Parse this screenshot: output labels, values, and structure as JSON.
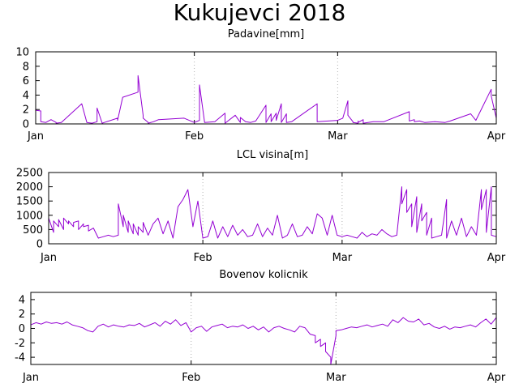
{
  "title": "Kukujevci 2018",
  "series_color": "#9400d3",
  "grid": true,
  "chart_data": [
    {
      "type": "line",
      "title": "Padavine[mm]",
      "xlabel": "",
      "ylabel": "",
      "x_unit": "date",
      "xlim": [
        "2018-01-01",
        "2018-04-01"
      ],
      "ylim": [
        0,
        10
      ],
      "yticks": [
        "0",
        "2",
        "4",
        "6",
        "8",
        "10"
      ],
      "xticks": [
        {
          "label": "Jan",
          "date": "2018-01-01"
        },
        {
          "label": "Feb",
          "date": "2018-02-01"
        },
        {
          "label": "Mar",
          "date": "2018-03-01"
        },
        {
          "label": "Apr",
          "date": "2018-04-01"
        }
      ],
      "series": [
        {
          "x": [
            "2018-01-01",
            "2018-01-02",
            "2018-01-02",
            "2018-01-03",
            "2018-01-04",
            "2018-01-05",
            "2018-01-05",
            "2018-01-06",
            "2018-01-10",
            "2018-01-11",
            "2018-01-12",
            "2018-01-13",
            "2018-01-13",
            "2018-01-14",
            "2018-01-17",
            "2018-01-17",
            "2018-01-18",
            "2018-01-21",
            "2018-01-21",
            "2018-01-22",
            "2018-01-22",
            "2018-01-23",
            "2018-01-23",
            "2018-01-24",
            "2018-01-25",
            "2018-01-30",
            "2018-02-01",
            "2018-02-02",
            "2018-02-02",
            "2018-02-02",
            "2018-02-03",
            "2018-02-05",
            "2018-02-06",
            "2018-02-07",
            "2018-02-07",
            "2018-02-09",
            "2018-02-10",
            "2018-02-10",
            "2018-02-11",
            "2018-02-12",
            "2018-02-13",
            "2018-02-15",
            "2018-02-15",
            "2018-02-16",
            "2018-02-16",
            "2018-02-17",
            "2018-02-17",
            "2018-02-18",
            "2018-02-18",
            "2018-02-19",
            "2018-02-19",
            "2018-02-20",
            "2018-02-25",
            "2018-02-25",
            "2018-03-01",
            "2018-03-02",
            "2018-03-03",
            "2018-03-03",
            "2018-03-04",
            "2018-03-04",
            "2018-03-05",
            "2018-03-05",
            "2018-03-05",
            "2018-03-06",
            "2018-03-06",
            "2018-03-08",
            "2018-03-10",
            "2018-03-15",
            "2018-03-15",
            "2018-03-16",
            "2018-03-16",
            "2018-03-17",
            "2018-03-18",
            "2018-03-20",
            "2018-03-22",
            "2018-03-23",
            "2018-03-27",
            "2018-03-28",
            "2018-03-31",
            "2018-03-31",
            "2018-04-01",
            "2018-04-01"
          ],
          "y": [
            1.9,
            1.8,
            0.3,
            0.2,
            0.6,
            0.2,
            0.1,
            0.2,
            2.8,
            0.2,
            0.1,
            0.3,
            2.2,
            0.1,
            0.8,
            0.5,
            3.7,
            4.4,
            6.7,
            1.2,
            0.8,
            0.2,
            0.1,
            0.3,
            0.6,
            0.8,
            0.2,
            0.5,
            0.9,
            5.4,
            0.2,
            0.3,
            0.9,
            1.5,
            0.1,
            1.2,
            0.2,
            0.9,
            0.3,
            0.2,
            0.4,
            2.6,
            0.2,
            1.4,
            0.3,
            1.5,
            0.5,
            2.8,
            0.2,
            1.4,
            0.2,
            0.3,
            2.8,
            0.3,
            0.5,
            0.8,
            3.2,
            1.2,
            0.3,
            0.2,
            0.1,
            0.4,
            0.2,
            0.6,
            0.1,
            0.3,
            0.3,
            1.7,
            0.4,
            0.6,
            0.3,
            0.4,
            0.2,
            0.3,
            0.2,
            0.4,
            1.4,
            0.5,
            4.8,
            3.9,
            0.8,
            0.6
          ]
        }
      ]
    },
    {
      "type": "line",
      "title": "LCL visina[m]",
      "xlabel": "",
      "ylabel": "",
      "x_unit": "date",
      "xlim": [
        "2018-01-01",
        "2018-04-01"
      ],
      "ylim": [
        0,
        2500
      ],
      "yticks": [
        "0",
        "500",
        "1000",
        "1500",
        "2000",
        "2500"
      ],
      "xticks": [
        {
          "label": "Jan",
          "date": "2018-01-01"
        },
        {
          "label": "Feb",
          "date": "2018-02-01"
        },
        {
          "label": "Mar",
          "date": "2018-03-01"
        },
        {
          "label": "Apr",
          "date": "2018-04-01"
        }
      ],
      "series": [
        {
          "x": [
            "2018-01-01",
            "2018-01-01",
            "2018-01-02",
            "2018-01-02",
            "2018-01-03",
            "2018-01-03",
            "2018-01-04",
            "2018-01-04",
            "2018-01-05",
            "2018-01-05",
            "2018-01-06",
            "2018-01-06",
            "2018-01-07",
            "2018-01-07",
            "2018-01-08",
            "2018-01-08",
            "2018-01-09",
            "2018-01-09",
            "2018-01-10",
            "2018-01-11",
            "2018-01-12",
            "2018-01-13",
            "2018-01-14",
            "2018-01-15",
            "2018-01-15",
            "2018-01-16",
            "2018-01-16",
            "2018-01-17",
            "2018-01-17",
            "2018-01-18",
            "2018-01-18",
            "2018-01-19",
            "2018-01-19",
            "2018-01-20",
            "2018-01-20",
            "2018-01-21",
            "2018-01-22",
            "2018-01-23",
            "2018-01-24",
            "2018-01-25",
            "2018-01-26",
            "2018-01-27",
            "2018-01-28",
            "2018-01-29",
            "2018-01-30",
            "2018-01-31",
            "2018-02-01",
            "2018-02-02",
            "2018-02-03",
            "2018-02-04",
            "2018-02-05",
            "2018-02-06",
            "2018-02-07",
            "2018-02-08",
            "2018-02-09",
            "2018-02-10",
            "2018-02-11",
            "2018-02-12",
            "2018-02-13",
            "2018-02-14",
            "2018-02-15",
            "2018-02-16",
            "2018-02-17",
            "2018-02-18",
            "2018-02-19",
            "2018-02-20",
            "2018-02-21",
            "2018-02-22",
            "2018-02-23",
            "2018-02-24",
            "2018-02-25",
            "2018-02-26",
            "2018-02-27",
            "2018-02-28",
            "2018-03-01",
            "2018-03-02",
            "2018-03-03",
            "2018-03-04",
            "2018-03-05",
            "2018-03-06",
            "2018-03-07",
            "2018-03-08",
            "2018-03-09",
            "2018-03-10",
            "2018-03-11",
            "2018-03-12",
            "2018-03-13",
            "2018-03-13",
            "2018-03-14",
            "2018-03-14",
            "2018-03-15",
            "2018-03-15",
            "2018-03-16",
            "2018-03-16",
            "2018-03-17",
            "2018-03-17",
            "2018-03-18",
            "2018-03-18",
            "2018-03-19",
            "2018-03-19",
            "2018-03-20",
            "2018-03-21",
            "2018-03-22",
            "2018-03-22",
            "2018-03-23",
            "2018-03-24",
            "2018-03-25",
            "2018-03-26",
            "2018-03-27",
            "2018-03-28",
            "2018-03-29",
            "2018-03-29",
            "2018-03-30",
            "2018-03-30",
            "2018-03-31",
            "2018-03-31",
            "2018-04-01"
          ],
          "y": [
            300,
            900,
            400,
            800,
            600,
            850,
            500,
            900,
            700,
            800,
            600,
            750,
            800,
            500,
            700,
            600,
            650,
            450,
            550,
            200,
            250,
            300,
            250,
            300,
            1400,
            600,
            1000,
            400,
            800,
            350,
            700,
            300,
            600,
            400,
            750,
            300,
            700,
            900,
            350,
            800,
            200,
            1300,
            1550,
            1900,
            600,
            1500,
            200,
            250,
            800,
            200,
            600,
            250,
            650,
            300,
            500,
            250,
            300,
            700,
            250,
            550,
            300,
            1000,
            200,
            300,
            700,
            250,
            300,
            600,
            350,
            1050,
            900,
            300,
            1000,
            300,
            250,
            300,
            250,
            200,
            400,
            250,
            350,
            300,
            500,
            350,
            250,
            300,
            2000,
            1400,
            1900,
            1100,
            1400,
            600,
            1650,
            400,
            1400,
            800,
            1100,
            300,
            900,
            200,
            250,
            300,
            1550,
            200,
            800,
            300,
            900,
            250,
            600,
            300,
            1900,
            1200,
            1900,
            400,
            2000,
            300,
            250
          ]
        }
      ]
    },
    {
      "type": "line",
      "title": "Bovenov kolicnik",
      "xlabel": "",
      "ylabel": "",
      "x_unit": "date",
      "xlim": [
        "2018-01-01",
        "2018-04-01"
      ],
      "ylim": [
        -5,
        5
      ],
      "yticks": [
        "-4",
        "-2",
        "0",
        "2",
        "4"
      ],
      "xticks": [
        {
          "label": "Jan",
          "date": "2018-01-01"
        },
        {
          "label": "Feb",
          "date": "2018-02-01"
        },
        {
          "label": "Mar",
          "date": "2018-03-01"
        },
        {
          "label": "Apr",
          "date": "2018-04-01"
        }
      ],
      "series": [
        {
          "x": [
            "2018-01-01",
            "2018-01-02",
            "2018-01-03",
            "2018-01-04",
            "2018-01-05",
            "2018-01-06",
            "2018-01-07",
            "2018-01-08",
            "2018-01-09",
            "2018-01-10",
            "2018-01-11",
            "2018-01-12",
            "2018-01-13",
            "2018-01-14",
            "2018-01-15",
            "2018-01-16",
            "2018-01-17",
            "2018-01-18",
            "2018-01-19",
            "2018-01-20",
            "2018-01-21",
            "2018-01-22",
            "2018-01-23",
            "2018-01-24",
            "2018-01-25",
            "2018-01-26",
            "2018-01-27",
            "2018-01-28",
            "2018-01-29",
            "2018-01-30",
            "2018-01-31",
            "2018-02-01",
            "2018-02-02",
            "2018-02-03",
            "2018-02-04",
            "2018-02-05",
            "2018-02-06",
            "2018-02-07",
            "2018-02-08",
            "2018-02-09",
            "2018-02-10",
            "2018-02-11",
            "2018-02-12",
            "2018-02-13",
            "2018-02-14",
            "2018-02-15",
            "2018-02-16",
            "2018-02-17",
            "2018-02-18",
            "2018-02-19",
            "2018-02-20",
            "2018-02-21",
            "2018-02-22",
            "2018-02-23",
            "2018-02-24",
            "2018-02-25",
            "2018-02-25",
            "2018-02-26",
            "2018-02-26",
            "2018-02-27",
            "2018-02-27",
            "2018-02-28",
            "2018-02-28",
            "2018-03-01",
            "2018-03-01",
            "2018-03-02",
            "2018-03-03",
            "2018-03-04",
            "2018-03-05",
            "2018-03-06",
            "2018-03-07",
            "2018-03-08",
            "2018-03-09",
            "2018-03-10",
            "2018-03-11",
            "2018-03-12",
            "2018-03-13",
            "2018-03-14",
            "2018-03-15",
            "2018-03-16",
            "2018-03-17",
            "2018-03-18",
            "2018-03-19",
            "2018-03-20",
            "2018-03-21",
            "2018-03-22",
            "2018-03-23",
            "2018-03-24",
            "2018-03-25",
            "2018-03-26",
            "2018-03-27",
            "2018-03-28",
            "2018-03-29",
            "2018-03-30",
            "2018-03-31",
            "2018-04-01"
          ],
          "y": [
            0.5,
            0.8,
            0.6,
            0.9,
            0.7,
            0.8,
            0.6,
            0.9,
            0.5,
            0.3,
            0.1,
            -0.3,
            -0.5,
            0.3,
            0.6,
            0.2,
            0.5,
            0.3,
            0.2,
            0.5,
            0.4,
            0.7,
            0.2,
            0.5,
            0.8,
            0.3,
            1.0,
            0.6,
            1.2,
            0.4,
            0.8,
            -0.5,
            0.1,
            0.3,
            -0.4,
            0.2,
            0.4,
            0.6,
            0.1,
            0.3,
            0.2,
            0.5,
            0.0,
            0.3,
            -0.2,
            0.2,
            -0.5,
            0.1,
            0.3,
            0.0,
            -0.2,
            -0.5,
            0.3,
            0.1,
            -0.8,
            -1.0,
            -2.0,
            -1.5,
            -2.5,
            -2.0,
            -3.2,
            -4.0,
            -5.0,
            -1.0,
            -0.3,
            -0.2,
            0.0,
            0.2,
            0.1,
            0.3,
            0.5,
            0.2,
            0.4,
            0.6,
            0.3,
            1.2,
            0.8,
            1.5,
            1.0,
            0.9,
            1.3,
            0.5,
            0.7,
            0.2,
            0.0,
            0.3,
            -0.1,
            0.2,
            0.1,
            0.3,
            0.5,
            0.2,
            0.8,
            1.3,
            0.6,
            1.5
          ]
        }
      ]
    }
  ]
}
